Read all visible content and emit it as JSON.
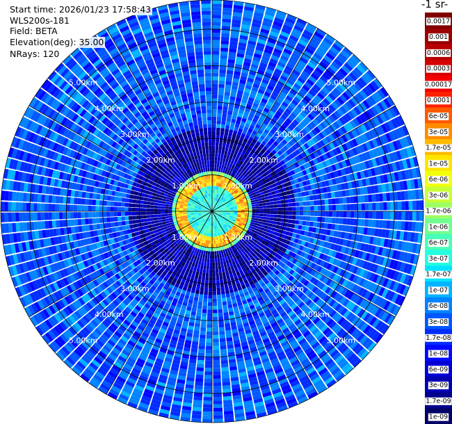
{
  "header": {
    "start_time": "Start time: 2026/01/23 17:58:43",
    "instrument": "WLS200s-181",
    "field": "Field: BETA",
    "elevation": "Elevation(deg): 35.00",
    "nrays": "NRays: 120"
  },
  "colorbar": {
    "title": "-1 sr-",
    "ticks": [
      "0.0017",
      "0.001",
      "0.0006",
      "0.0003",
      "0.00017",
      "0.0001",
      "6e-05",
      "3e-05",
      "1.7e-05",
      "1e-05",
      "6e-06",
      "3e-06",
      "1.7e-06",
      "1e-06",
      "6e-07",
      "3e-07",
      "1.7e-07",
      "1e-07",
      "6e-08",
      "3e-08",
      "1.7e-08",
      "1e-08",
      "6e-09",
      "3e-09",
      "1.7e-09",
      "1e-09"
    ],
    "colors": [
      "#7f0000",
      "#9a0000",
      "#b80000",
      "#d60000",
      "#f30000",
      "#ff2000",
      "#ff5a00",
      "#ff8c00",
      "#ffba00",
      "#ffe400",
      "#f2ff0d",
      "#c8ff37",
      "#9cff63",
      "#70ff8f",
      "#48ffb7",
      "#22ffdf",
      "#00e4ff",
      "#00b4ff",
      "#0084ff",
      "#0058ff",
      "#002cff",
      "#0008ff",
      "#0000d6",
      "#0000b0",
      "#00008a",
      "#000066"
    ]
  },
  "chart_data": {
    "type": "heatmap",
    "projection": "polar (PPI scan)",
    "field": "BETA",
    "elevation_deg": 35.0,
    "n_rays": 120,
    "range_rings_km": [
      1.0,
      2.0,
      3.0,
      4.0,
      5.0
    ],
    "range_labels": [
      "1.00km",
      "2.00km",
      "3.00km",
      "4.00km",
      "5.00km"
    ],
    "radial_lines_deg": [
      0,
      30,
      60,
      90,
      120,
      150,
      180,
      210,
      240,
      270,
      300,
      330
    ],
    "max_range_km": 5.8,
    "color_scale": "log",
    "value_range": [
      1e-09,
      0.0017
    ],
    "zones": [
      {
        "range_km": [
          0.0,
          0.7
        ],
        "typical_value": 3e-07
      },
      {
        "range_km": [
          0.7,
          1.0
        ],
        "typical_value": 1.7e-05
      },
      {
        "range_km": [
          1.0,
          1.1
        ],
        "typical_value": 1e-06
      },
      {
        "range_km": [
          1.1,
          2.3
        ],
        "typical_value": 3e-09
      },
      {
        "range_km": [
          2.3,
          5.8
        ],
        "typical_value": 3e-08
      }
    ]
  }
}
